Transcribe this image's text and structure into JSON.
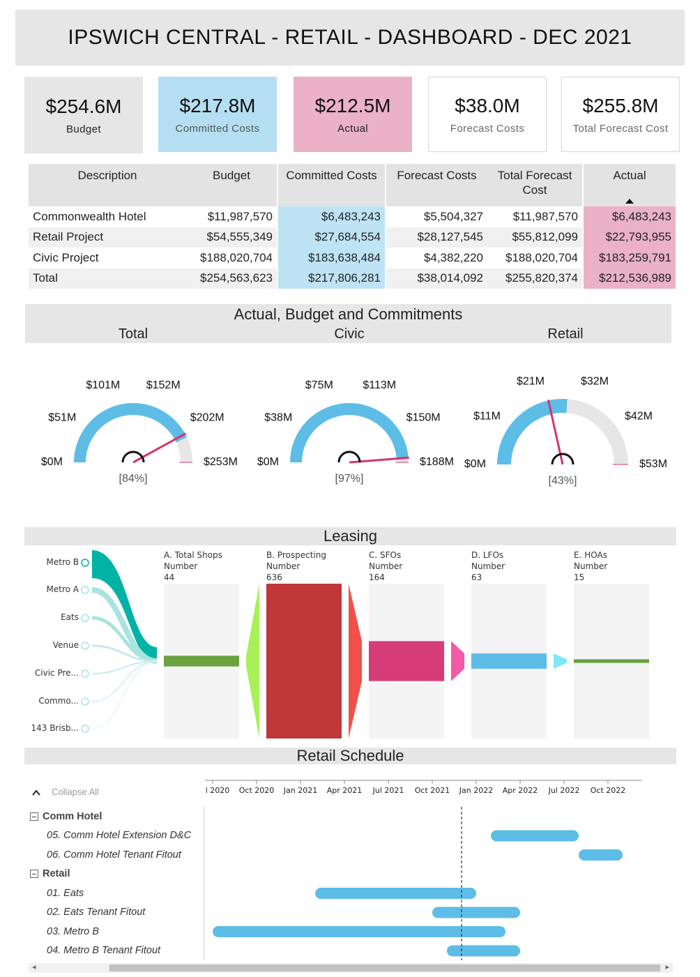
{
  "title": "IPSWICH CENTRAL - RETAIL - DASHBOARD - DEC 2021",
  "kpis": [
    {
      "value": "$254.6M",
      "label": "Budget",
      "color": "#e6e6e6"
    },
    {
      "value": "$217.8M",
      "label": "Committed Costs",
      "color": "#b4dff2"
    },
    {
      "value": "$212.5M",
      "label": "Actual",
      "color": "#eab1c7"
    },
    {
      "value": "$38.0M",
      "label": "Forecast Costs",
      "color": "#ffffff"
    },
    {
      "value": "$255.8M",
      "label": "Total Forecast Cost",
      "color": "#ffffff"
    }
  ],
  "table": {
    "headers": [
      "Description",
      "Budget",
      "Committed Costs",
      "Forecast Costs",
      "Total Forecast Cost",
      "Actual"
    ],
    "rows": [
      [
        "Commonwealth Hotel",
        "$11,987,570",
        "$6,483,243",
        "$5,504,327",
        "$11,987,570",
        "$6,483,243"
      ],
      [
        "Retail Project",
        "$54,555,349",
        "$27,684,554",
        "$28,127,545",
        "$55,812,099",
        "$22,793,955"
      ],
      [
        "Civic Project",
        "$188,020,704",
        "$183,638,484",
        "$4,382,220",
        "$188,020,704",
        "$183,259,791"
      ],
      [
        "Total",
        "$254,563,623",
        "$217,806,281",
        "$38,014,092",
        "$255,820,374",
        "$212,536,989"
      ]
    ]
  },
  "gauge_section": {
    "title": "Actual, Budget and Commitments",
    "subtitles": [
      "Total",
      "Civic",
      "Retail"
    ]
  },
  "gauges": [
    {
      "name": "Total",
      "actual": 212.5,
      "commit": 217.8,
      "max": 253,
      "percent_label": "[84%]",
      "ticks": [
        "$0M",
        "$51M",
        "$101M",
        "$152M",
        "$202M",
        "$253M"
      ]
    },
    {
      "name": "Civic",
      "actual": 183.3,
      "commit": 183.6,
      "max": 188,
      "percent_label": "[97%]",
      "ticks": [
        "$0M",
        "$38M",
        "$75M",
        "$113M",
        "$150M",
        "$188M"
      ]
    },
    {
      "name": "Retail",
      "actual": 22.8,
      "commit": 27.7,
      "max": 53,
      "percent_label": "[43%]",
      "ticks": [
        "$0M",
        "$11M",
        "$21M",
        "$32M",
        "$42M",
        "$53M"
      ]
    }
  ],
  "leasing": {
    "title": "Leasing",
    "legend": [
      "Metro B",
      "Metro A",
      "Eats",
      "Venue",
      "Civic Pre...",
      "Commo...",
      "143 Brisb..."
    ],
    "stages": [
      {
        "name": "A. Total Shops",
        "metric": "Number",
        "value": 44,
        "color": "#6aa33f"
      },
      {
        "name": "B. Prospecting",
        "metric": "Number",
        "value": 636,
        "color": "#c0373a"
      },
      {
        "name": "C. SFOs",
        "metric": "Number",
        "value": 164,
        "color": "#d63c78"
      },
      {
        "name": "D. LFOs",
        "metric": "Number",
        "value": 63,
        "color": "#5dbde6"
      },
      {
        "name": "E. HOAs",
        "metric": "Number",
        "value": 15,
        "color": "#6aa33f"
      }
    ]
  },
  "schedule": {
    "title": "Retail Schedule",
    "collapse_label": "Collapse All",
    "axis_labels": [
      "l 2020",
      "Oct 2020",
      "Jan 2021",
      "Apr 2021",
      "Jul 2021",
      "Oct 2021",
      "Jan 2022",
      "Apr 2022",
      "Jul 2022",
      "Oct 2022"
    ],
    "today_label": "Dec 2021",
    "rows": [
      {
        "type": "group",
        "label": "Comm Hotel"
      },
      {
        "type": "task",
        "label": "05. Comm Hotel Extension D&C",
        "start": "Feb 2022",
        "end": "Aug 2022"
      },
      {
        "type": "task",
        "label": "06. Comm Hotel Tenant Fitout",
        "start": "Aug 2022",
        "end": "Nov 2022"
      },
      {
        "type": "group",
        "label": "Retail"
      },
      {
        "type": "task",
        "label": "01. Eats",
        "start": "Feb 2021",
        "end": "Jan 2022"
      },
      {
        "type": "task",
        "label": "02. Eats Tenant Fitout",
        "start": "Oct 2021",
        "end": "Apr 2022"
      },
      {
        "type": "task",
        "label": "03. Metro B",
        "start": "Jul 2020",
        "end": "Mar 2022"
      },
      {
        "type": "task",
        "label": "04. Metro B Tenant Fitout",
        "start": "Nov 2021",
        "end": "Apr 2022"
      }
    ]
  },
  "colors": {
    "blue": "#5dbde6",
    "pink": "#d6336c",
    "grey": "#e6e6e6",
    "teal": "#00b3a4"
  }
}
